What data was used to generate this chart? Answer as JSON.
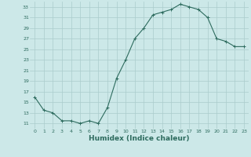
{
  "x": [
    0,
    1,
    2,
    3,
    4,
    5,
    6,
    7,
    8,
    9,
    10,
    11,
    12,
    13,
    14,
    15,
    16,
    17,
    18,
    19,
    20,
    21,
    22,
    23
  ],
  "y": [
    16,
    13.5,
    13,
    11.5,
    11.5,
    11,
    11.5,
    11,
    14,
    19.5,
    23,
    27,
    29,
    31.5,
    32,
    32.5,
    33.5,
    33,
    32.5,
    31,
    27,
    26.5,
    25.5,
    25.5
  ],
  "line_color": "#2d6b5e",
  "marker": "+",
  "marker_size": 3,
  "bg_color": "#cce8e8",
  "grid_color": "#aacccc",
  "xlabel": "Humidex (Indice chaleur)",
  "xlim": [
    -0.5,
    23.5
  ],
  "ylim": [
    10,
    34
  ],
  "yticks": [
    11,
    13,
    15,
    17,
    19,
    21,
    23,
    25,
    27,
    29,
    31,
    33
  ],
  "xticks": [
    0,
    1,
    2,
    3,
    4,
    5,
    6,
    7,
    8,
    9,
    10,
    11,
    12,
    13,
    14,
    15,
    16,
    17,
    18,
    19,
    20,
    21,
    22,
    23
  ],
  "tick_fontsize": 4.5,
  "xlabel_fontsize": 6.5,
  "linewidth": 0.8,
  "markeredgewidth": 0.7
}
